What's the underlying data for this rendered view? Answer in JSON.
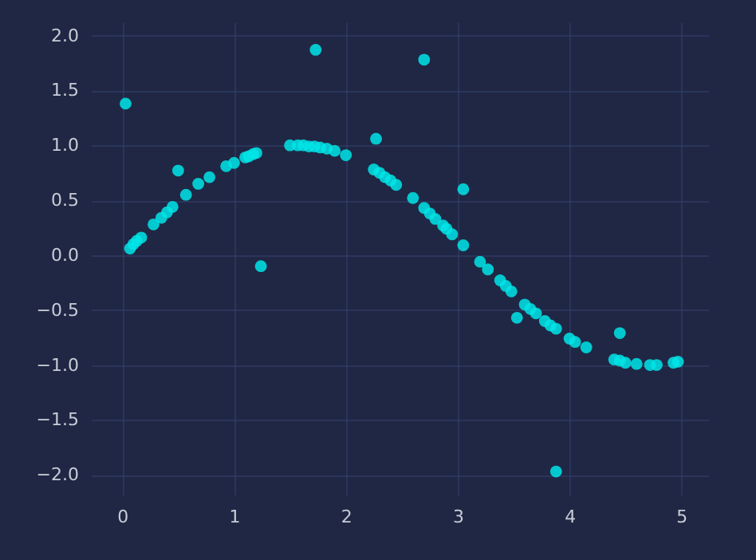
{
  "chart_data": {
    "type": "scatter",
    "xlim": [
      -0.28,
      5.24
    ],
    "ylim": [
      -2.18,
      2.12
    ],
    "xticks": [
      0,
      1,
      2,
      3,
      4,
      5
    ],
    "yticks": [
      {
        "value": -2,
        "label": "−2.0"
      },
      {
        "value": -1.5,
        "label": "−1.5"
      },
      {
        "value": -1,
        "label": "−1.0"
      },
      {
        "value": -0.5,
        "label": "−0.5"
      },
      {
        "value": 0,
        "label": "0.0"
      },
      {
        "value": 0.5,
        "label": "0.5"
      },
      {
        "value": 1,
        "label": "1.0"
      },
      {
        "value": 1.5,
        "label": "1.5"
      },
      {
        "value": 2,
        "label": "2.0"
      }
    ],
    "grid": true,
    "marker": "circle",
    "series": [
      {
        "color": "#00e5e8",
        "x": [
          0.03,
          0.07,
          0.1,
          0.13,
          0.17,
          0.28,
          0.35,
          0.4,
          0.45,
          0.5,
          0.57,
          0.68,
          0.78,
          0.93,
          1.0,
          1.1,
          1.13,
          1.17,
          1.2,
          1.24,
          1.5,
          1.57,
          1.62,
          1.67,
          1.72,
          1.73,
          1.77,
          1.83,
          1.9,
          2.0,
          2.25,
          2.27,
          2.3,
          2.35,
          2.4,
          2.45,
          2.6,
          2.7,
          2.7,
          2.75,
          2.8,
          2.87,
          2.9,
          2.95,
          3.05,
          3.05,
          3.2,
          3.27,
          3.38,
          3.43,
          3.48,
          3.53,
          3.6,
          3.65,
          3.7,
          3.78,
          3.83,
          3.88,
          3.88,
          4.0,
          4.05,
          4.15,
          4.4,
          4.45,
          4.45,
          4.5,
          4.6,
          4.72,
          4.78,
          4.93,
          4.97
        ],
        "values": [
          1.38,
          0.06,
          0.1,
          0.13,
          0.16,
          0.28,
          0.34,
          0.39,
          0.44,
          0.77,
          0.55,
          0.65,
          0.71,
          0.81,
          0.84,
          0.89,
          0.9,
          0.92,
          0.93,
          -0.1,
          1.0,
          1.0,
          1.0,
          0.99,
          0.99,
          1.87,
          0.98,
          0.97,
          0.95,
          0.91,
          0.78,
          1.06,
          0.75,
          0.71,
          0.68,
          0.64,
          0.52,
          0.43,
          1.78,
          0.38,
          0.33,
          0.27,
          0.24,
          0.19,
          0.09,
          0.6,
          -0.06,
          -0.13,
          -0.23,
          -0.28,
          -0.33,
          -0.57,
          -0.45,
          -0.49,
          -0.53,
          -0.6,
          -0.64,
          -0.67,
          -1.97,
          -0.76,
          -0.79,
          -0.84,
          -0.95,
          -0.96,
          -0.71,
          -0.98,
          -0.99,
          -1.0,
          -1.0,
          -0.98,
          -0.97
        ]
      }
    ]
  }
}
